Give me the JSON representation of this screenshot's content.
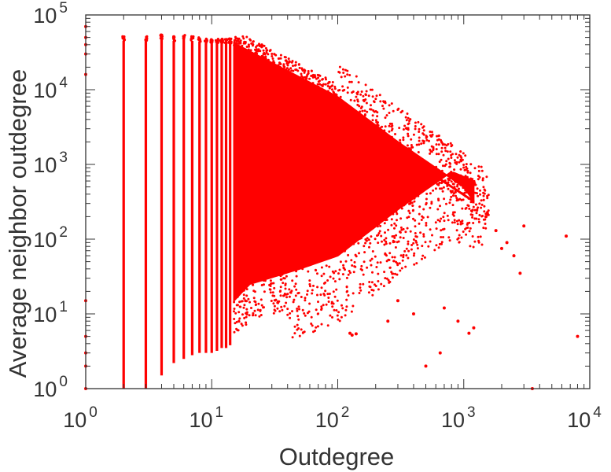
{
  "chart_data": {
    "type": "scatter",
    "title": "",
    "xlabel": "Outdegree",
    "ylabel": "Average neighbor outdegree",
    "xscale": "log",
    "yscale": "log",
    "xlim": [
      1,
      10000
    ],
    "ylim": [
      1,
      100000
    ],
    "x_ticks": [
      {
        "base": "10",
        "exp": "0"
      },
      {
        "base": "10",
        "exp": "1"
      },
      {
        "base": "10",
        "exp": "2"
      },
      {
        "base": "10",
        "exp": "3"
      },
      {
        "base": "10",
        "exp": "4"
      }
    ],
    "y_ticks": [
      {
        "base": "10",
        "exp": "0"
      },
      {
        "base": "10",
        "exp": "1"
      },
      {
        "base": "10",
        "exp": "2"
      },
      {
        "base": "10",
        "exp": "3"
      },
      {
        "base": "10",
        "exp": "4"
      },
      {
        "base": "10",
        "exp": "5"
      }
    ],
    "grid": false,
    "legend": "none",
    "marker_color": "#ff0000",
    "columns": [
      {
        "x": 2,
        "ymin": 1,
        "ymax": 45000
      },
      {
        "x": 3,
        "ymin": 1,
        "ymax": 45000
      },
      {
        "x": 4,
        "ymin": 1.5,
        "ymax": 48000
      },
      {
        "x": 5,
        "ymin": 2.2,
        "ymax": 45000
      },
      {
        "x": 6,
        "ymin": 2.5,
        "ymax": 48000
      },
      {
        "x": 7,
        "ymin": 2.8,
        "ymax": 45000
      },
      {
        "x": 8,
        "ymin": 3,
        "ymax": 44000
      },
      {
        "x": 9,
        "ymin": 3,
        "ymax": 42000
      },
      {
        "x": 10,
        "ymin": 3,
        "ymax": 42000
      },
      {
        "x": 11,
        "ymin": 3.2,
        "ymax": 42000
      },
      {
        "x": 12,
        "ymin": 3.5,
        "ymax": 42000
      },
      {
        "x": 13,
        "ymin": 3.5,
        "ymax": 42000
      },
      {
        "x": 14,
        "ymin": 3.8,
        "ymax": 42000
      }
    ],
    "dense_region": {
      "upper_boundary": [
        [
          15,
          42000
        ],
        [
          100,
          8000
        ],
        [
          300,
          2000
        ],
        [
          1000,
          500
        ],
        [
          1200,
          320
        ]
      ],
      "lower_boundary": [
        [
          15,
          15
        ],
        [
          20,
          25
        ],
        [
          50,
          40
        ],
        [
          100,
          60
        ],
        [
          300,
          250
        ],
        [
          800,
          800
        ],
        [
          1200,
          600
        ]
      ]
    },
    "upper_edge_line": [
      [
        15,
        42000
      ],
      [
        1200,
        320
      ]
    ],
    "outliers": [
      [
        1800,
        130
      ],
      [
        2000,
        75
      ],
      [
        2500,
        60
      ],
      [
        2800,
        35
      ],
      [
        3000,
        150
      ],
      [
        6500,
        110
      ],
      [
        8000,
        5
      ],
      [
        1100,
        5.5
      ],
      [
        1200,
        6.5
      ],
      [
        125,
        5.5
      ],
      [
        130,
        5.2
      ],
      [
        140,
        5.4
      ],
      [
        500,
        2
      ],
      [
        650,
        3
      ],
      [
        1,
        1
      ],
      [
        1,
        2
      ],
      [
        1,
        70000
      ],
      [
        1,
        50000
      ],
      [
        1,
        40000
      ],
      [
        1,
        30000
      ],
      [
        1,
        16000
      ],
      [
        1,
        15
      ],
      [
        1,
        5
      ],
      [
        1,
        3
      ],
      [
        300,
        15
      ],
      [
        400,
        10
      ],
      [
        250,
        8
      ],
      [
        2200,
        90
      ],
      [
        1500,
        200
      ],
      [
        900,
        8
      ],
      [
        700,
        12
      ],
      [
        3500,
        1
      ]
    ]
  }
}
